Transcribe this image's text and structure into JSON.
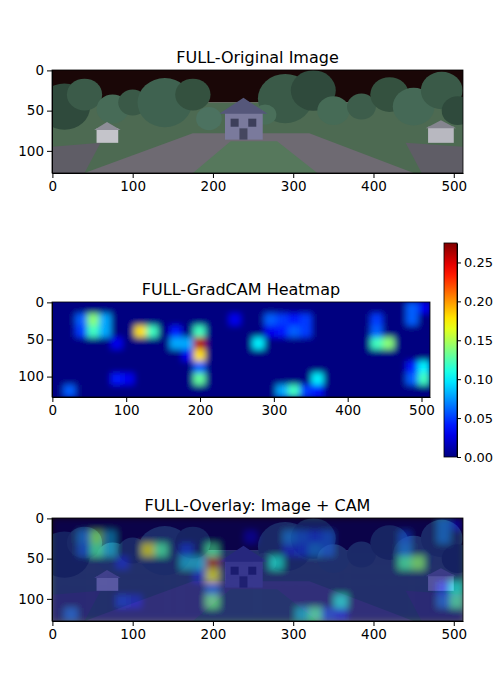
{
  "chart_data": [
    {
      "type": "image",
      "title": "FULL-Original Image",
      "xlim": [
        -0.5,
        511.5
      ],
      "ylim": [
        127.5,
        -0.5
      ],
      "xticks": [
        0,
        100,
        200,
        300,
        400,
        500
      ],
      "yticks": [
        0,
        50,
        100
      ]
    },
    {
      "type": "heatmap",
      "title": "FULL-GradCAM Heatmap",
      "xlim": [
        -0.5,
        511.5
      ],
      "ylim": [
        127.5,
        -0.5
      ],
      "xticks": [
        0,
        100,
        200,
        300,
        400,
        500
      ],
      "yticks": [
        0,
        50,
        100
      ],
      "values": [
        [
          0,
          0,
          0,
          0,
          0,
          0,
          0,
          0,
          0,
          0,
          0,
          0,
          0,
          0,
          0,
          0,
          0,
          0,
          0,
          0,
          0,
          0,
          0,
          0,
          0,
          0,
          0,
          0,
          0,
          0,
          0.06,
          0.03
        ],
        [
          0,
          0,
          0.06,
          0.14,
          0.08,
          0,
          0,
          0,
          0,
          0,
          0,
          0,
          0,
          0,
          0,
          0.03,
          0,
          0,
          0.06,
          0.05,
          0.04,
          0.05,
          0,
          0,
          0,
          0,
          0,
          0.05,
          0,
          0,
          0.06,
          0
        ],
        [
          0,
          0,
          0.05,
          0.12,
          0.08,
          0,
          0,
          0.18,
          0.12,
          0,
          0.04,
          0,
          0.12,
          0,
          0,
          0,
          0,
          0,
          0.03,
          0.04,
          0.06,
          0.05,
          0,
          0,
          0,
          0,
          0,
          0.06,
          0,
          0,
          0,
          0
        ],
        [
          0,
          0,
          0,
          0,
          0,
          0.03,
          0,
          0,
          0,
          0,
          0.08,
          0.08,
          0.26,
          0,
          0,
          0,
          0,
          0.1,
          0,
          0,
          0,
          0,
          0,
          0,
          0,
          0,
          0,
          0.12,
          0.14,
          0,
          0,
          0
        ],
        [
          0,
          0,
          0,
          0,
          0,
          0,
          0,
          0,
          0,
          0,
          0,
          0.03,
          0.18,
          0,
          0,
          0,
          0,
          0,
          0,
          0,
          0,
          0,
          0,
          0,
          0,
          0,
          0,
          0,
          0,
          0,
          0,
          0
        ],
        [
          0,
          0,
          0,
          0,
          0,
          0,
          0,
          0,
          0,
          0,
          0,
          0,
          0.06,
          0,
          0,
          0,
          0,
          0,
          0,
          0,
          0,
          0,
          0,
          0,
          0,
          0,
          0,
          0,
          0,
          0,
          0.04,
          0.1
        ],
        [
          0,
          0,
          0,
          0,
          0,
          0.04,
          0.03,
          0,
          0,
          0,
          0,
          0,
          0.13,
          0,
          0,
          0,
          0,
          0,
          0,
          0,
          0,
          0,
          0.1,
          0,
          0,
          0,
          0,
          0,
          0,
          0,
          0.06,
          0.12
        ],
        [
          0,
          0.06,
          0,
          0,
          0,
          0,
          0,
          0,
          0,
          0,
          0,
          0,
          0,
          0,
          0,
          0,
          0,
          0,
          0,
          0.08,
          0.12,
          0.05,
          0.04,
          0,
          0,
          0,
          0,
          0,
          0,
          0,
          0,
          0
        ]
      ],
      "colorbar": {
        "range": [
          0,
          0.275
        ],
        "ticks": [
          {
            "value": 0,
            "label": "0.00"
          },
          {
            "value": 0.05,
            "label": "0.05"
          },
          {
            "value": 0.1,
            "label": "0.10"
          },
          {
            "value": 0.15,
            "label": "0.15"
          },
          {
            "value": 0.2,
            "label": "0.20"
          },
          {
            "value": 0.25,
            "label": "0.25"
          }
        ]
      }
    },
    {
      "type": "overlay",
      "title": "FULL-Overlay: Image + CAM",
      "xlim": [
        -0.5,
        511.5
      ],
      "ylim": [
        127.5,
        -0.5
      ],
      "xticks": [
        0,
        100,
        200,
        300,
        400,
        500
      ],
      "yticks": [
        0,
        50,
        100
      ]
    }
  ]
}
